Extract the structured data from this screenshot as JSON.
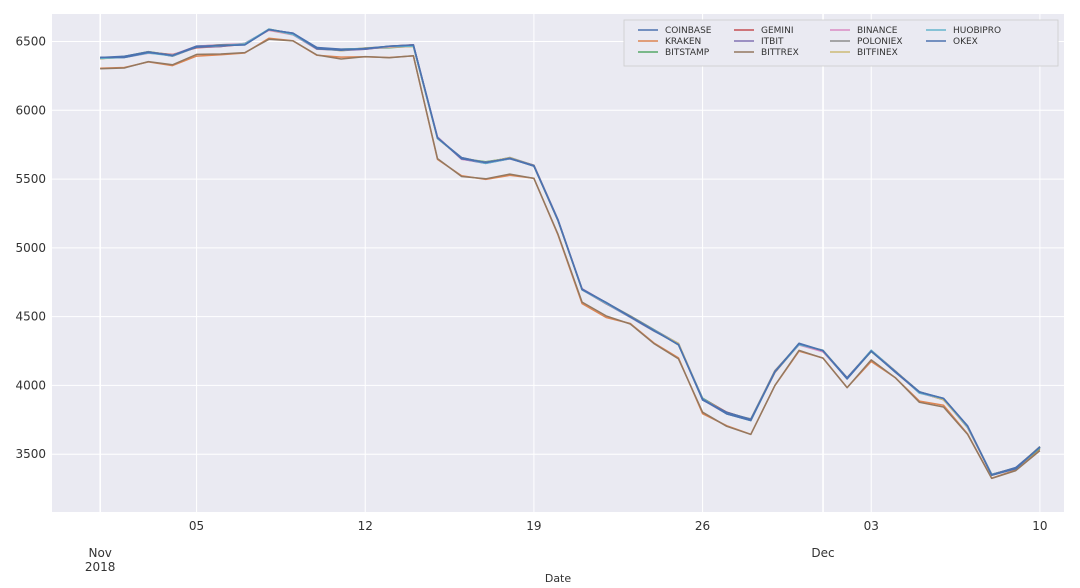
{
  "chart_data": {
    "type": "line",
    "title": "",
    "xlabel": "Date",
    "ylabel": "",
    "ylim": [
      3080,
      6700
    ],
    "xlim": [
      "2018-10-30",
      "2018-12-11"
    ],
    "grid": true,
    "legend_position": "top-right",
    "y_ticks": [
      3500,
      4000,
      4500,
      5000,
      5500,
      6000,
      6500
    ],
    "x_ticks": [
      {
        "date": "2018-11-05",
        "label": "05"
      },
      {
        "date": "2018-11-12",
        "label": "12"
      },
      {
        "date": "2018-11-19",
        "label": "19"
      },
      {
        "date": "2018-11-26",
        "label": "26"
      },
      {
        "date": "2018-12-03",
        "label": "03"
      },
      {
        "date": "2018-12-10",
        "label": "10"
      }
    ],
    "major_ticks": [
      {
        "date": "2018-11-01",
        "label": "Nov",
        "sublabel": "2018"
      },
      {
        "date": "2018-12-01",
        "label": "Dec",
        "sublabel": ""
      }
    ],
    "x": [
      "2018-11-01",
      "2018-11-02",
      "2018-11-03",
      "2018-11-04",
      "2018-11-05",
      "2018-11-06",
      "2018-11-07",
      "2018-11-08",
      "2018-11-09",
      "2018-11-10",
      "2018-11-11",
      "2018-11-12",
      "2018-11-13",
      "2018-11-14",
      "2018-11-15",
      "2018-11-16",
      "2018-11-17",
      "2018-11-18",
      "2018-11-19",
      "2018-11-20",
      "2018-11-21",
      "2018-11-22",
      "2018-11-23",
      "2018-11-24",
      "2018-11-25",
      "2018-11-26",
      "2018-11-27",
      "2018-11-28",
      "2018-11-29",
      "2018-11-30",
      "2018-12-01",
      "2018-12-02",
      "2018-12-03",
      "2018-12-04",
      "2018-12-05",
      "2018-12-06",
      "2018-12-07",
      "2018-12-08",
      "2018-12-09",
      "2018-12-10"
    ],
    "series": [
      {
        "name": "COINBASE",
        "color": "#4c72b0",
        "values": [
          6380,
          6390,
          6420,
          6400,
          6460,
          6470,
          6480,
          6590,
          6560,
          6450,
          6440,
          6450,
          6460,
          6470,
          5800,
          5650,
          5620,
          5650,
          5600,
          5200,
          4700,
          4600,
          4500,
          4400,
          4300,
          3900,
          3800,
          3750,
          4100,
          4300,
          4250,
          4050,
          4250,
          4100,
          3950,
          3900,
          3700,
          3350,
          3400,
          3550
        ]
      },
      {
        "name": "KRAKEN",
        "color": "#dd8452",
        "values": [
          6300,
          6310,
          6350,
          6330,
          6400,
          6410,
          6420,
          6520,
          6500,
          6400,
          6380,
          6390,
          6380,
          6390,
          5650,
          5520,
          5500,
          5530,
          5500,
          5100,
          4600,
          4500,
          4450,
          4300,
          4200,
          3800,
          3700,
          3650,
          4000,
          4250,
          4200,
          3980,
          4180,
          4050,
          3880,
          3850,
          3650,
          3330,
          3380,
          3530
        ]
      },
      {
        "name": "BITSTAMP",
        "color": "#55a868",
        "values": [
          6380,
          6390,
          6420,
          6400,
          6460,
          6470,
          6480,
          6585,
          6555,
          6450,
          6440,
          6450,
          6460,
          6470,
          5800,
          5650,
          5620,
          5650,
          5600,
          5200,
          4700,
          4600,
          4500,
          4400,
          4300,
          3900,
          3800,
          3750,
          4100,
          4300,
          4250,
          4050,
          4250,
          4100,
          3950,
          3900,
          3700,
          3350,
          3400,
          3550
        ]
      },
      {
        "name": "GEMINI",
        "color": "#c44e52",
        "values": [
          6380,
          6390,
          6420,
          6400,
          6460,
          6470,
          6480,
          6585,
          6555,
          6450,
          6440,
          6450,
          6460,
          6470,
          5800,
          5650,
          5620,
          5650,
          5600,
          5200,
          4700,
          4600,
          4500,
          4400,
          4300,
          3900,
          3800,
          3750,
          4100,
          4300,
          4250,
          4050,
          4250,
          4100,
          3950,
          3900,
          3700,
          3350,
          3400,
          3550
        ]
      },
      {
        "name": "ITBIT",
        "color": "#8172b3",
        "values": [
          6380,
          6390,
          6420,
          6400,
          6460,
          6470,
          6480,
          6585,
          6555,
          6450,
          6440,
          6450,
          6460,
          6470,
          5800,
          5650,
          5620,
          5650,
          5600,
          5200,
          4700,
          4600,
          4500,
          4400,
          4300,
          3900,
          3800,
          3750,
          4100,
          4300,
          4250,
          4050,
          4250,
          4100,
          3950,
          3900,
          3700,
          3350,
          3400,
          3550
        ]
      },
      {
        "name": "BITTREX",
        "color": "#937860",
        "values": [
          6300,
          6310,
          6350,
          6330,
          6400,
          6410,
          6420,
          6520,
          6500,
          6400,
          6380,
          6390,
          6380,
          6390,
          5650,
          5520,
          5500,
          5530,
          5500,
          5100,
          4600,
          4500,
          4450,
          4300,
          4200,
          3800,
          3700,
          3650,
          4000,
          4250,
          4200,
          3980,
          4180,
          4050,
          3880,
          3850,
          3650,
          3330,
          3380,
          3530
        ]
      },
      {
        "name": "BINANCE",
        "color": "#da8bc3",
        "values": [
          6380,
          6390,
          6420,
          6400,
          6460,
          6470,
          6480,
          6585,
          6555,
          6450,
          6440,
          6450,
          6460,
          6470,
          5800,
          5650,
          5620,
          5650,
          5600,
          5200,
          4700,
          4600,
          4500,
          4400,
          4300,
          3900,
          3800,
          3750,
          4100,
          4300,
          4250,
          4050,
          4250,
          4100,
          3950,
          3900,
          3700,
          3350,
          3400,
          3550
        ]
      },
      {
        "name": "POLONIEX",
        "color": "#8c8c8c",
        "values": [
          6380,
          6390,
          6420,
          6400,
          6460,
          6470,
          6480,
          6585,
          6555,
          6450,
          6440,
          6450,
          6460,
          6470,
          5800,
          5650,
          5620,
          5650,
          5600,
          5200,
          4700,
          4600,
          4500,
          4400,
          4300,
          3900,
          3800,
          3750,
          4100,
          4300,
          4250,
          4050,
          4250,
          4100,
          3950,
          3900,
          3700,
          3350,
          3400,
          3550
        ]
      },
      {
        "name": "BITFINEX",
        "color": "#ccb974",
        "values": [
          6380,
          6390,
          6420,
          6400,
          6460,
          6470,
          6480,
          6585,
          6555,
          6450,
          6440,
          6450,
          6460,
          6470,
          5800,
          5650,
          5620,
          5650,
          5600,
          5200,
          4700,
          4600,
          4500,
          4400,
          4300,
          3900,
          3800,
          3750,
          4100,
          4300,
          4250,
          4050,
          4250,
          4100,
          3950,
          3900,
          3700,
          3350,
          3400,
          3550
        ]
      },
      {
        "name": "HUOBIPRO",
        "color": "#64b5cd",
        "values": [
          6380,
          6390,
          6420,
          6400,
          6460,
          6470,
          6480,
          6585,
          6555,
          6450,
          6440,
          6450,
          6460,
          6470,
          5800,
          5650,
          5620,
          5650,
          5600,
          5200,
          4700,
          4600,
          4500,
          4400,
          4300,
          3900,
          3800,
          3750,
          4100,
          4300,
          4250,
          4050,
          4250,
          4100,
          3950,
          3900,
          3700,
          3350,
          3400,
          3550
        ]
      },
      {
        "name": "OKEX",
        "color": "#4c72b0",
        "values": [
          6380,
          6390,
          6420,
          6400,
          6460,
          6470,
          6480,
          6590,
          6560,
          6450,
          6440,
          6450,
          6460,
          6470,
          5800,
          5650,
          5620,
          5650,
          5600,
          5200,
          4700,
          4600,
          4500,
          4400,
          4300,
          3900,
          3800,
          3750,
          4100,
          4300,
          4250,
          4050,
          4250,
          4100,
          3950,
          3900,
          3700,
          3350,
          3400,
          3550
        ]
      }
    ]
  }
}
